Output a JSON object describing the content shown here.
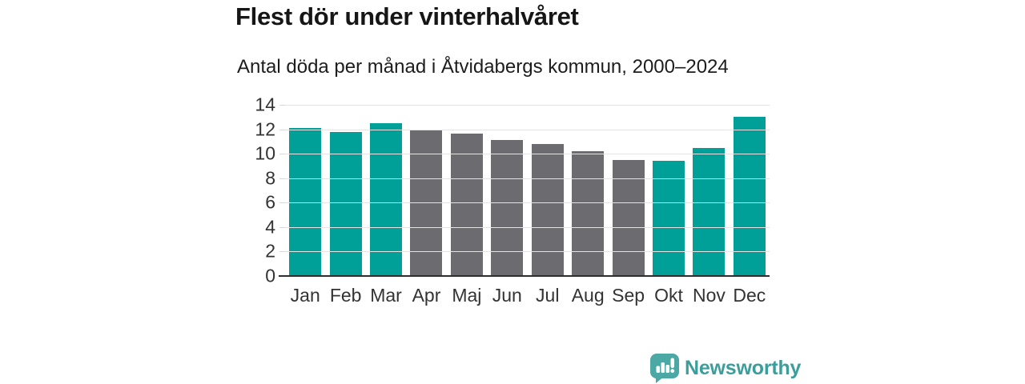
{
  "header": {
    "title": "Flest dör under vinterhalvåret",
    "subtitle": "Antal döda per månad i Åtvidabergs kommun, 2000–2024"
  },
  "chart_data": {
    "type": "bar",
    "title": "Flest dör under vinterhalvåret",
    "subtitle": "Antal döda per månad i Åtvidabergs kommun, 2000–2024",
    "categories": [
      "Jan",
      "Feb",
      "Mar",
      "Apr",
      "Maj",
      "Jun",
      "Jul",
      "Aug",
      "Sep",
      "Okt",
      "Nov",
      "Dec"
    ],
    "values": [
      12.1,
      11.8,
      12.5,
      12.0,
      11.65,
      11.1,
      10.8,
      10.2,
      9.5,
      9.4,
      10.5,
      13.0
    ],
    "bar_seasons": [
      "winter",
      "winter",
      "winter",
      "summer",
      "summer",
      "summer",
      "summer",
      "summer",
      "summer",
      "winter",
      "winter",
      "winter"
    ],
    "colors": {
      "winter": "#00a098",
      "summer": "#6b6b70"
    },
    "xlabel": "",
    "ylabel": "",
    "ylim": [
      0,
      14
    ],
    "yticks": [
      0,
      2,
      4,
      6,
      8,
      10,
      12,
      14
    ],
    "grid": true,
    "legend": "none"
  },
  "footer": {
    "brand": "Newsworthy",
    "brand_color": "#3b9e9b",
    "logo_color": "#4ba8a5"
  }
}
